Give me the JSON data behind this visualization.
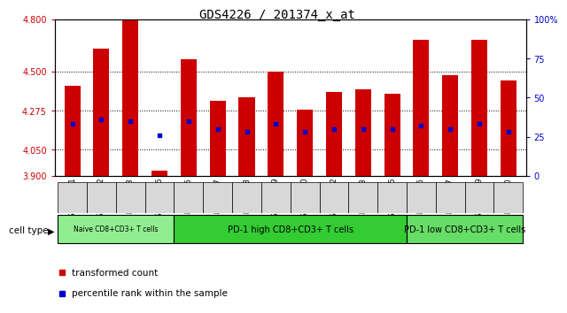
{
  "title": "GDS4226 / 201374_x_at",
  "samples": [
    "GSM651411",
    "GSM651412",
    "GSM651413",
    "GSM651415",
    "GSM651416",
    "GSM651417",
    "GSM651418",
    "GSM651419",
    "GSM651420",
    "GSM651422",
    "GSM651423",
    "GSM651425",
    "GSM651426",
    "GSM651427",
    "GSM651429",
    "GSM651430"
  ],
  "transformed_count": [
    4.42,
    4.63,
    4.8,
    3.93,
    4.57,
    4.33,
    4.35,
    4.5,
    4.28,
    4.38,
    4.4,
    4.37,
    4.68,
    4.48,
    4.68,
    4.45
  ],
  "percentile_rank": [
    33,
    36,
    35,
    26,
    35,
    30,
    28,
    33,
    28,
    30,
    30,
    30,
    32,
    30,
    33,
    28
  ],
  "ylim_left": [
    3.9,
    4.8
  ],
  "ylim_right": [
    0,
    100
  ],
  "yticks_left": [
    3.9,
    4.05,
    4.275,
    4.5,
    4.8
  ],
  "yticks_right": [
    0,
    25,
    50,
    75,
    100
  ],
  "bar_color": "#CC0000",
  "dot_color": "#0000CC",
  "bg_color": "#FFFFFF",
  "plot_bg": "#FFFFFF",
  "cell_type_groups": [
    {
      "label": "Naive CD8+CD3+ T cells",
      "start": 0,
      "end": 3,
      "color": "#90EE90"
    },
    {
      "label": "PD-1 high CD8+CD3+ T cells",
      "start": 4,
      "end": 11,
      "color": "#33CC33"
    },
    {
      "label": "PD-1 low CD8+CD3+ T cells",
      "start": 12,
      "end": 15,
      "color": "#66DD66"
    }
  ],
  "legend_items": [
    {
      "label": "transformed count",
      "color": "#CC0000"
    },
    {
      "label": "percentile rank within the sample",
      "color": "#0000CC"
    }
  ],
  "bar_bottom": 3.9,
  "bar_width": 0.55,
  "ylabel_left_color": "#CC0000",
  "ylabel_right_color": "#0000CC",
  "title_fontsize": 10,
  "tick_fontsize": 7,
  "label_fontsize": 8
}
